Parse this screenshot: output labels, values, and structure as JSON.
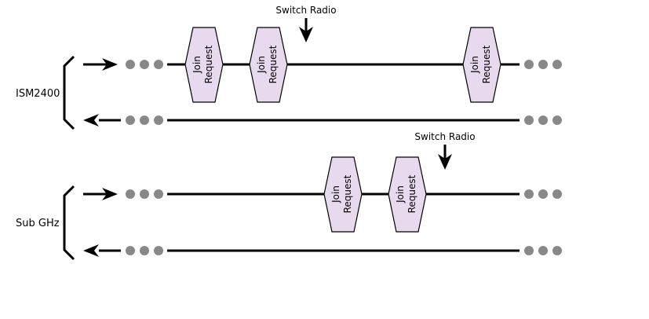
{
  "groups": [
    {
      "label": "ISM2400",
      "switch_label": "Switch Radio",
      "packets": [
        {
          "line1": "Join",
          "line2": "Request"
        },
        {
          "line1": "Join",
          "line2": "Request"
        },
        {
          "line1": "Join",
          "line2": "Request"
        }
      ]
    },
    {
      "label": "Sub GHz",
      "switch_label": "Switch Radio",
      "packets": [
        {
          "line1": "Join",
          "line2": "Request"
        },
        {
          "line1": "Join",
          "line2": "Request"
        }
      ]
    }
  ],
  "colors": {
    "packet_fill": "#e8daee",
    "packet_stroke": "#000000",
    "dot": "#888888",
    "line": "#000000"
  }
}
